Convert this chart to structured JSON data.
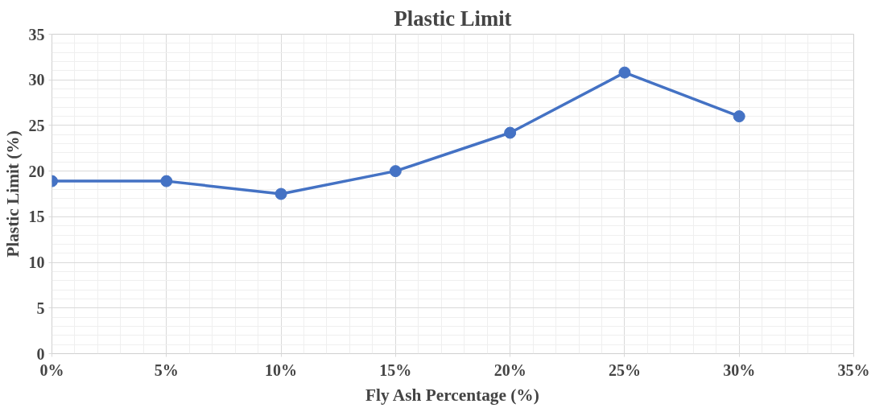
{
  "chart_data": {
    "type": "line",
    "title": "Plastic Limit",
    "xlabel": "Fly Ash Percentage (%)",
    "ylabel": "Plastic Limit (%)",
    "x": [
      0,
      0.05,
      0.1,
      0.15,
      0.2,
      0.25,
      0.3
    ],
    "series": [
      {
        "color": "#4472c4",
        "values": [
          18.9,
          18.9,
          17.5,
          20.0,
          24.2,
          30.8,
          26.0
        ]
      }
    ],
    "xlim": [
      0,
      0.35
    ],
    "xticks": [
      {
        "value": 0,
        "label": "0%"
      },
      {
        "value": 0.05,
        "label": "5%"
      },
      {
        "value": 0.1,
        "label": "10%"
      },
      {
        "value": 0.15,
        "label": "15%"
      },
      {
        "value": 0.2,
        "label": "20%"
      },
      {
        "value": 0.25,
        "label": "25%"
      },
      {
        "value": 0.3,
        "label": "30%"
      },
      {
        "value": 0.35,
        "label": "35%"
      }
    ],
    "ylim": [
      0,
      35
    ],
    "yticks": [
      0,
      5,
      10,
      15,
      20,
      25,
      30,
      35
    ],
    "grid": true,
    "marker": "circle",
    "line_style": "solid"
  }
}
